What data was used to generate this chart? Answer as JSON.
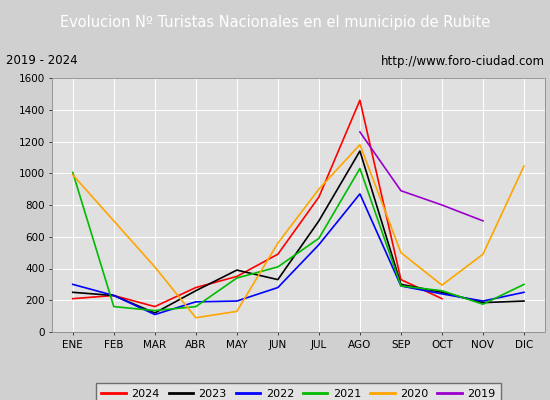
{
  "title": "Evolucion Nº Turistas Nacionales en el municipio de Rubite",
  "subtitle_left": "2019 - 2024",
  "subtitle_right": "http://www.foro-ciudad.com",
  "title_bg_color": "#4c7aba",
  "title_text_color": "#ffffff",
  "subtitle_bg_color": "#e8e8e8",
  "subtitle_border_color": "#555555",
  "plot_bg_color": "#e0e0e0",
  "grid_color": "#ffffff",
  "fig_bg_color": "#d0d0d0",
  "months": [
    "ENE",
    "FEB",
    "MAR",
    "ABR",
    "MAY",
    "JUN",
    "JUL",
    "AGO",
    "SEP",
    "OCT",
    "NOV",
    "DIC"
  ],
  "ylim": [
    0,
    1600
  ],
  "yticks": [
    0,
    200,
    400,
    600,
    800,
    1000,
    1200,
    1400,
    1600
  ],
  "series": {
    "2024": {
      "color": "#ff0000",
      "data": [
        210,
        230,
        160,
        280,
        350,
        490,
        850,
        1460,
        330,
        210,
        null,
        null
      ]
    },
    "2023": {
      "color": "#000000",
      "data": [
        250,
        230,
        120,
        260,
        390,
        330,
        700,
        1140,
        300,
        250,
        185,
        195
      ]
    },
    "2022": {
      "color": "#0000ff",
      "data": [
        300,
        230,
        110,
        190,
        195,
        280,
        550,
        870,
        290,
        240,
        195,
        250
      ]
    },
    "2021": {
      "color": "#00bb00",
      "data": [
        1005,
        160,
        135,
        160,
        340,
        410,
        590,
        1030,
        290,
        260,
        175,
        300
      ]
    },
    "2020": {
      "color": "#ffa500",
      "data": [
        990,
        700,
        410,
        90,
        130,
        560,
        900,
        1180,
        500,
        295,
        490,
        1045
      ]
    },
    "2019": {
      "color": "#9900cc",
      "data": [
        null,
        null,
        null,
        null,
        null,
        null,
        null,
        1260,
        890,
        800,
        700,
        null
      ]
    }
  },
  "legend_order": [
    "2024",
    "2023",
    "2022",
    "2021",
    "2020",
    "2019"
  ],
  "title_fontsize": 10.5,
  "subtitle_fontsize": 8.5,
  "tick_fontsize": 7.5,
  "legend_fontsize": 8
}
